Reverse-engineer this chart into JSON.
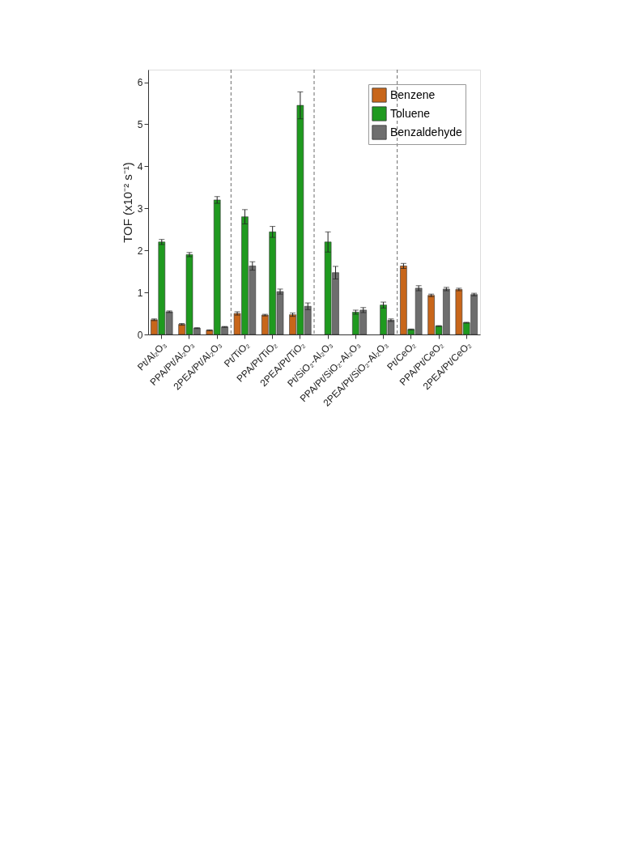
{
  "chart_data": {
    "type": "bar",
    "ylabel": "TOF (x10⁻² s⁻¹)",
    "categories": [
      "Pt/Al₂O₃",
      "PPA/Pt/Al₂O₃",
      "2PEA/Pt/Al₂O₃",
      "Pt/TiO₂",
      "PPA/Pt/TiO₂",
      "2PEA/Pt/TiO₂",
      "Pt/SiO₂-Al₂O₃",
      "PPA/Pt/SiO₂-Al₂O₃",
      "2PEA/Pt/SiO₂-Al₂O₃",
      "Pt/CeO₂",
      "PPA/Pt/CeO₂",
      "2PEA/Pt/CeO₂"
    ],
    "series": [
      {
        "name": "Benzene",
        "color": "#c8661a",
        "values": [
          0.35,
          0.24,
          0.1,
          0.5,
          0.46,
          0.47,
          null,
          null,
          null,
          1.63,
          0.93,
          1.07
        ],
        "errors": [
          0.02,
          0.02,
          0.01,
          0.04,
          0.02,
          0.04,
          null,
          null,
          null,
          0.06,
          0.03,
          0.03
        ]
      },
      {
        "name": "Toluene",
        "color": "#1f9a1f",
        "values": [
          2.2,
          1.9,
          3.2,
          2.8,
          2.44,
          5.45,
          2.2,
          0.53,
          0.7,
          0.12,
          0.2,
          0.28
        ],
        "errors": [
          0.06,
          0.05,
          0.08,
          0.17,
          0.13,
          0.32,
          0.24,
          0.05,
          0.07,
          0.01,
          0.01,
          0.01
        ]
      },
      {
        "name": "Benzaldehyde",
        "color": "#6e6e6e",
        "values": [
          0.54,
          0.15,
          0.18,
          1.63,
          1.02,
          0.67,
          1.47,
          0.58,
          0.34,
          1.1,
          1.08,
          0.95
        ],
        "errors": [
          0.02,
          0.01,
          0.01,
          0.1,
          0.06,
          0.08,
          0.15,
          0.06,
          0.03,
          0.06,
          0.04,
          0.03
        ]
      }
    ],
    "ylim": [
      0,
      6.3
    ],
    "yticks": [
      0,
      1,
      2,
      3,
      4,
      5,
      6
    ],
    "grid": false,
    "legend": "top right"
  }
}
